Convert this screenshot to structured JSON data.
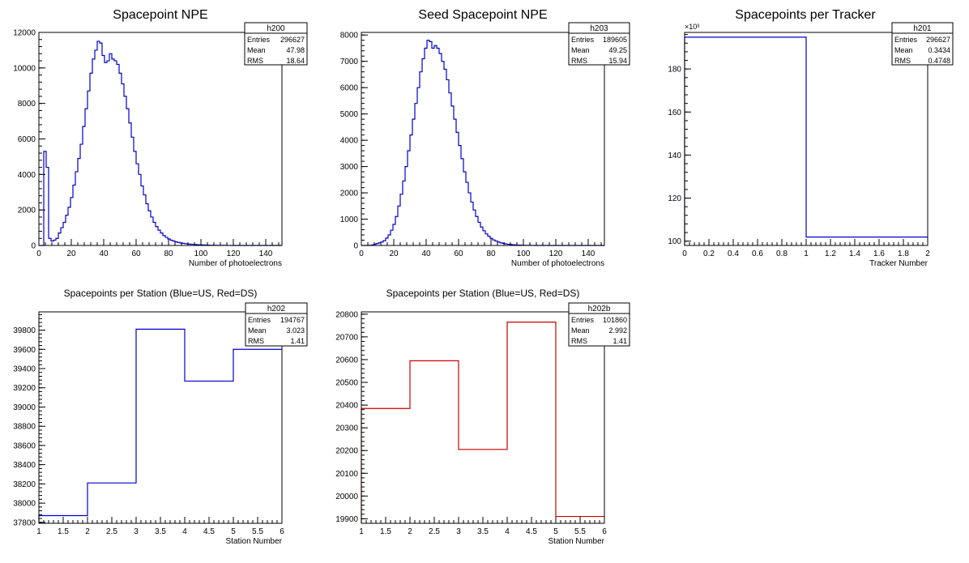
{
  "canvas": {
    "background": "#ffffff"
  },
  "colors": {
    "axis": "#000000",
    "blue": "#0000cc",
    "red": "#cc0000"
  },
  "chart_data": [
    {
      "id": "h200",
      "type": "bar",
      "title": "Spacepoint NPE",
      "xlabel": "Number of photoelectrons",
      "ylabel": "",
      "xlim": [
        0,
        150
      ],
      "ylim": [
        0,
        12000
      ],
      "xticks": [
        0,
        20,
        40,
        60,
        80,
        100,
        120,
        140
      ],
      "yticks": [
        0,
        2000,
        4000,
        6000,
        8000,
        10000,
        12000
      ],
      "exponent_label": "",
      "color": "blue",
      "bins": {
        "lo": 0,
        "width": 1.5,
        "values": [
          0,
          0,
          5300,
          4400,
          400,
          250,
          300,
          400,
          700,
          1000,
          1300,
          1700,
          2150,
          2700,
          3400,
          4150,
          4900,
          5700,
          6700,
          7700,
          8700,
          9700,
          10500,
          11000,
          11500,
          11400,
          10700,
          10300,
          10400,
          10800,
          10500,
          10400,
          10200,
          9700,
          9100,
          8400,
          7700,
          6900,
          6100,
          5300,
          4600,
          4000,
          3350,
          2850,
          2350,
          1950,
          1600,
          1300,
          1060,
          860,
          700,
          560,
          460,
          370,
          300,
          250,
          200,
          170,
          140,
          120,
          100,
          80,
          70,
          60,
          50,
          40,
          35,
          30,
          25,
          20,
          15,
          12,
          10,
          8,
          6,
          5,
          4,
          3,
          2,
          1,
          1,
          1,
          1,
          0,
          0,
          0,
          0,
          0,
          0,
          0,
          0,
          0,
          0,
          0,
          0,
          0,
          0,
          0,
          0,
          0
        ]
      },
      "stats": {
        "name": "h200",
        "rows": [
          [
            "Entries",
            "296627"
          ],
          [
            "Mean",
            "47.98"
          ],
          [
            "RMS",
            "18.64"
          ]
        ]
      }
    },
    {
      "id": "h203",
      "type": "bar",
      "title": "Seed Spacepoint NPE",
      "xlabel": "Number of photoelectrons",
      "ylabel": "",
      "xlim": [
        0,
        150
      ],
      "ylim": [
        0,
        8100
      ],
      "xticks": [
        0,
        20,
        40,
        60,
        80,
        100,
        120,
        140
      ],
      "yticks": [
        0,
        1000,
        2000,
        3000,
        4000,
        5000,
        6000,
        7000,
        8000
      ],
      "exponent_label": "",
      "color": "blue",
      "bins": {
        "lo": 0,
        "width": 1.5,
        "values": [
          0,
          0,
          0,
          5,
          15,
          40,
          70,
          100,
          130,
          180,
          280,
          400,
          580,
          800,
          1100,
          1500,
          1950,
          2450,
          3000,
          3600,
          4200,
          4800,
          5400,
          6000,
          6600,
          7100,
          7500,
          7800,
          7750,
          7500,
          7600,
          7500,
          7300,
          7000,
          6700,
          6300,
          5800,
          5300,
          4800,
          4300,
          3800,
          3300,
          2800,
          2400,
          2000,
          1650,
          1350,
          1100,
          880,
          700,
          560,
          440,
          350,
          270,
          210,
          170,
          130,
          100,
          80,
          60,
          45,
          35,
          27,
          20,
          15,
          11,
          8,
          6,
          4,
          3,
          2,
          1,
          1,
          1,
          0,
          0,
          0,
          0,
          0,
          0,
          0,
          0,
          0,
          0,
          0,
          0,
          0,
          0,
          0,
          0,
          0,
          0,
          0,
          0,
          0,
          0,
          0,
          0,
          0,
          0
        ]
      },
      "stats": {
        "name": "h203",
        "rows": [
          [
            "Entries",
            "189605"
          ],
          [
            "Mean",
            "49.25"
          ],
          [
            "RMS",
            "15.94"
          ]
        ]
      }
    },
    {
      "id": "h201",
      "type": "bar",
      "title": "Spacepoints per Tracker",
      "xlabel": "Tracker Number",
      "ylabel": "",
      "xlim": [
        0,
        2
      ],
      "ylim": [
        98,
        197
      ],
      "xticks": [
        "0",
        "0.2",
        "0.4",
        "0.6",
        "0.8",
        "1",
        "1.2",
        "1.4",
        "1.6",
        "1.8",
        "2"
      ],
      "yticks": [
        100,
        120,
        140,
        160,
        180
      ],
      "exponent_label": "×10³",
      "color": "blue",
      "bins": {
        "lo": 0,
        "width": 1,
        "values": [
          194.8,
          101.9
        ]
      },
      "stats": {
        "name": "h201",
        "rows": [
          [
            "Entries",
            "296627"
          ],
          [
            "Mean",
            "0.3434"
          ],
          [
            "RMS",
            "0.4748"
          ]
        ]
      }
    },
    {
      "id": "h202",
      "type": "bar",
      "title": "Spacepoints per Station (Blue=US, Red=DS)",
      "xlabel": "Station Number",
      "ylabel": "",
      "xlim": [
        1,
        6
      ],
      "ylim": [
        37790,
        39990
      ],
      "xticks": [
        "1",
        "1.5",
        "2",
        "2.5",
        "3",
        "3.5",
        "4",
        "4.5",
        "5",
        "5.5",
        "6"
      ],
      "yticks": [
        37800,
        38000,
        38200,
        38400,
        38600,
        38800,
        39000,
        39200,
        39400,
        39600,
        39800
      ],
      "exponent_label": "",
      "color": "blue",
      "bins": {
        "lo": 1,
        "width": 1,
        "values": [
          37870,
          38210,
          39810,
          39270,
          39600
        ]
      },
      "stats": {
        "name": "h202",
        "rows": [
          [
            "Entries",
            "194767"
          ],
          [
            "Mean",
            "3.023"
          ],
          [
            "RMS",
            "1.41"
          ]
        ]
      }
    },
    {
      "id": "h202b",
      "type": "bar",
      "title": "Spacepoints per Station (Blue=US, Red=DS)",
      "xlabel": "Station Number",
      "ylabel": "",
      "xlim": [
        1,
        6
      ],
      "ylim": [
        19880,
        20810
      ],
      "xticks": [
        "1",
        "1.5",
        "2",
        "2.5",
        "3",
        "3.5",
        "4",
        "4.5",
        "5",
        "5.5",
        "6"
      ],
      "yticks": [
        19900,
        20000,
        20100,
        20200,
        20300,
        20400,
        20500,
        20600,
        20700,
        20800
      ],
      "exponent_label": "",
      "color": "red",
      "bins": {
        "lo": 1,
        "width": 1,
        "values": [
          20385,
          20595,
          20205,
          20765,
          19910
        ]
      },
      "stats": {
        "name": "h202b",
        "rows": [
          [
            "Entries",
            "101860"
          ],
          [
            "Mean",
            "2.992"
          ],
          [
            "RMS",
            "1.41"
          ]
        ]
      }
    }
  ]
}
